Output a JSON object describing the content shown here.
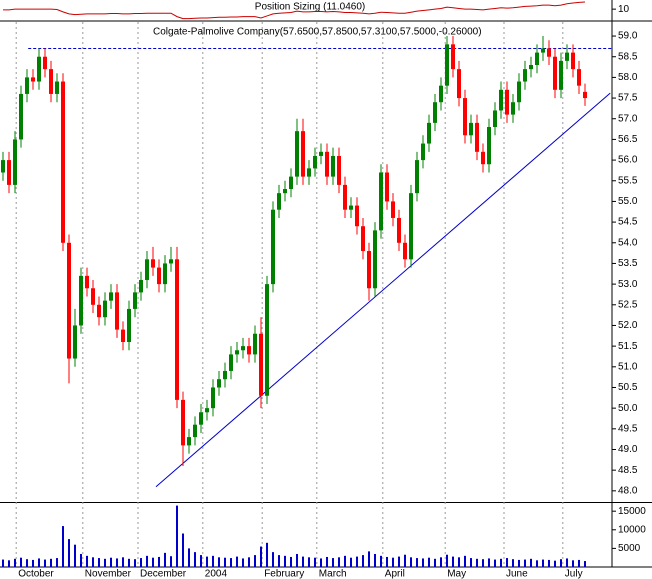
{
  "chart_data": [
    {
      "type": "line",
      "title": "Position Sizing (11.0460)",
      "color": "#cc0000",
      "values": [
        9.9,
        9.9,
        10.0,
        10.0,
        10.0,
        10.0,
        10.0,
        10.0,
        10.0,
        9.95,
        9.6,
        9.3,
        9.2,
        9.25,
        9.3,
        9.3,
        9.3,
        9.3,
        9.35,
        9.35,
        9.3,
        9.3,
        9.35,
        9.35,
        9.4,
        9.4,
        9.4,
        9.4,
        9.4,
        8.9,
        8.6,
        8.6,
        8.65,
        8.7,
        8.7,
        8.75,
        8.8,
        8.8,
        8.85,
        8.85,
        8.9,
        8.9,
        8.9,
        8.7,
        9.0,
        9.3,
        9.4,
        9.45,
        9.5,
        9.7,
        9.6,
        9.6,
        9.65,
        9.65,
        9.6,
        9.65,
        9.6,
        9.5,
        9.5,
        9.45,
        9.4,
        9.3,
        9.4,
        9.55,
        9.5,
        9.45,
        9.4,
        9.4,
        9.55,
        9.7,
        9.8,
        9.9,
        10.0,
        10.1,
        10.3,
        10.2,
        10.1,
        10.0,
        10.0,
        9.95,
        9.9,
        10.0,
        10.1,
        10.2,
        10.15,
        10.2,
        10.3,
        10.4,
        10.45,
        10.5,
        10.6,
        10.6,
        10.5,
        10.6,
        10.8,
        10.9,
        11.0,
        11.046
      ],
      "ylim": [
        8.4,
        11.2
      ],
      "yticks": [
        10
      ],
      "xlim": [
        -0.5,
        101.5
      ]
    },
    {
      "type": "candlestick",
      "title": "Colgate-Palmolive Company(57.6500,57.8500,57.3100,57.5000,-0.26000)",
      "open": [
        55.7,
        56.0,
        55.4,
        56.5,
        57.6,
        58.0,
        57.9,
        58.5,
        58.2,
        57.6,
        57.9,
        54.0,
        51.2,
        52.0,
        53.2,
        52.9,
        52.5,
        52.2,
        52.6,
        52.8,
        51.9,
        51.6,
        52.4,
        52.8,
        53.1,
        53.6,
        53.4,
        53.0,
        53.5,
        53.6,
        50.2,
        49.1,
        49.3,
        49.6,
        49.9,
        50.0,
        50.5,
        50.7,
        50.9,
        51.3,
        51.4,
        51.5,
        51.3,
        51.8,
        50.3,
        53.0,
        54.8,
        55.2,
        55.3,
        55.6,
        56.7,
        55.6,
        55.8,
        56.1,
        56.2,
        55.6,
        56.1,
        55.4,
        54.8,
        54.9,
        54.4,
        53.8,
        52.9,
        54.3,
        55.7,
        55.0,
        54.6,
        54.0,
        53.6,
        55.2,
        56.0,
        56.4,
        56.9,
        57.4,
        57.8,
        58.8,
        58.2,
        57.5,
        56.6,
        56.9,
        56.2,
        55.9,
        56.8,
        57.2,
        57.7,
        57.1,
        57.4,
        57.9,
        58.2,
        58.3,
        58.6,
        58.7,
        58.5,
        57.7,
        58.4,
        58.6,
        58.2,
        57.65
      ],
      "high": [
        56.2,
        56.2,
        56.7,
        57.8,
        58.2,
        58.2,
        58.7,
        58.7,
        58.4,
        58.1,
        58.1,
        54.2,
        52.4,
        53.4,
        53.4,
        53.1,
        52.7,
        52.8,
        53.0,
        53.0,
        52.1,
        52.6,
        53.0,
        53.3,
        53.8,
        53.9,
        53.6,
        53.7,
        53.9,
        53.9,
        50.4,
        49.5,
        49.8,
        50.1,
        50.2,
        50.7,
        50.9,
        51.1,
        51.5,
        51.6,
        51.7,
        51.7,
        52.0,
        52.2,
        53.2,
        55.0,
        55.4,
        55.5,
        55.8,
        57.0,
        57.0,
        56.0,
        56.3,
        56.4,
        56.4,
        56.3,
        56.3,
        55.6,
        55.1,
        55.1,
        54.6,
        54.0,
        54.5,
        55.9,
        55.9,
        55.2,
        54.8,
        54.2,
        55.4,
        56.2,
        56.6,
        57.1,
        57.6,
        58.0,
        59.0,
        59.0,
        58.4,
        57.7,
        57.1,
        57.1,
        56.4,
        57.0,
        57.4,
        57.9,
        57.9,
        57.6,
        58.1,
        58.4,
        58.5,
        58.8,
        59.0,
        58.9,
        58.7,
        58.6,
        58.8,
        58.8,
        58.4,
        57.85
      ],
      "low": [
        55.5,
        55.2,
        55.2,
        56.3,
        57.4,
        57.7,
        57.7,
        58.0,
        57.4,
        57.4,
        53.8,
        50.6,
        51.0,
        51.8,
        52.7,
        52.3,
        52.0,
        52.0,
        52.4,
        51.7,
        51.4,
        51.4,
        52.2,
        52.6,
        52.9,
        53.2,
        52.8,
        52.8,
        53.3,
        50.0,
        48.6,
        48.9,
        49.1,
        49.4,
        49.7,
        49.8,
        50.3,
        50.5,
        50.7,
        51.1,
        51.2,
        51.1,
        51.1,
        50.0,
        50.1,
        52.8,
        54.6,
        55.0,
        55.1,
        55.4,
        55.4,
        55.4,
        55.6,
        55.9,
        55.4,
        55.4,
        55.2,
        54.6,
        54.6,
        54.2,
        53.6,
        52.6,
        52.7,
        54.1,
        54.8,
        54.4,
        53.8,
        53.4,
        53.4,
        55.0,
        55.8,
        56.2,
        56.7,
        57.2,
        57.6,
        58.0,
        57.3,
        56.4,
        56.4,
        56.0,
        55.7,
        55.7,
        56.6,
        57.0,
        56.9,
        56.9,
        57.2,
        57.7,
        58.0,
        58.1,
        58.4,
        58.3,
        57.5,
        57.5,
        58.2,
        58.0,
        57.6,
        57.31
      ],
      "close": [
        56.0,
        55.4,
        56.5,
        57.6,
        58.0,
        57.9,
        58.5,
        58.2,
        57.6,
        57.9,
        54.0,
        51.2,
        52.0,
        53.2,
        52.9,
        52.5,
        52.2,
        52.6,
        52.8,
        51.9,
        51.6,
        52.4,
        52.8,
        53.1,
        53.6,
        53.4,
        53.0,
        53.5,
        53.6,
        50.2,
        49.1,
        49.3,
        49.6,
        49.9,
        50.0,
        50.5,
        50.7,
        50.9,
        51.3,
        51.4,
        51.5,
        51.3,
        51.8,
        50.3,
        53.0,
        54.8,
        55.2,
        55.3,
        55.6,
        56.7,
        55.6,
        55.8,
        56.1,
        56.2,
        55.6,
        56.1,
        55.4,
        54.8,
        54.9,
        54.4,
        53.8,
        52.9,
        54.3,
        55.7,
        55.0,
        54.6,
        54.0,
        53.6,
        55.2,
        56.0,
        56.4,
        56.9,
        57.4,
        57.8,
        58.8,
        58.2,
        57.5,
        56.6,
        56.9,
        56.2,
        55.9,
        56.8,
        57.2,
        57.7,
        57.1,
        57.4,
        57.9,
        58.2,
        58.3,
        58.6,
        58.7,
        58.5,
        57.7,
        58.4,
        58.6,
        58.2,
        57.8,
        57.5
      ],
      "up_color": "#008000",
      "down_color": "#ff0000",
      "ylim": [
        47.73,
        59.34
      ],
      "yticks": [
        {
          "value": 48,
          "label": "48.0"
        },
        48.5,
        {
          "value": 49,
          "label": "49.0"
        },
        49.5,
        {
          "value": 50,
          "label": "50.0"
        },
        50.5,
        {
          "value": 51,
          "label": "51.0"
        },
        51.5,
        {
          "value": 52,
          "label": "52.0"
        },
        52.5,
        {
          "value": 53,
          "label": "53.0"
        },
        53.5,
        {
          "value": 54,
          "label": "54.0"
        },
        54.5,
        {
          "value": 55,
          "label": "55.0"
        },
        55.5,
        {
          "value": 56,
          "label": "56.0"
        },
        56.5,
        {
          "value": 57,
          "label": "57.0"
        },
        57.5,
        {
          "value": 58,
          "label": "58.0"
        },
        58.5,
        {
          "value": 59,
          "label": "59.0"
        }
      ],
      "xlim": [
        -0.5,
        101.5
      ],
      "xticks": [
        {
          "value": 2.2,
          "label": "October"
        },
        {
          "value": 13.3,
          "label": "November"
        },
        {
          "value": 22.5,
          "label": "December"
        },
        {
          "value": 33.3,
          "label": "2004"
        },
        {
          "value": 43.2,
          "label": "February"
        },
        {
          "value": 52.3,
          "label": "March"
        },
        {
          "value": 63.3,
          "label": "April"
        },
        {
          "value": 73.7,
          "label": "May"
        },
        {
          "value": 83.5,
          "label": "June"
        },
        {
          "value": 93.3,
          "label": "July"
        }
      ],
      "grid": true,
      "hlines": [
        {
          "y": 58.7,
          "x": [
            4.2,
            101.5
          ],
          "color": "#0000cc",
          "dashed": true
        }
      ],
      "trendlines": [
        {
          "x": [
            25.5,
            101.2
          ],
          "y": [
            48.1,
            57.62
          ],
          "color": "#0000cc"
        }
      ]
    },
    {
      "type": "bar",
      "color": "#0000cc",
      "values": [
        2000,
        1800,
        2200,
        2500,
        2100,
        1900,
        2300,
        2000,
        2200,
        2400,
        11000,
        7500,
        6000,
        3500,
        3000,
        2600,
        2400,
        2200,
        2500,
        2300,
        2600,
        2200,
        2100,
        2400,
        3000,
        2500,
        2700,
        3800,
        2900,
        16500,
        9000,
        5000,
        4000,
        3200,
        2800,
        3000,
        2600,
        2500,
        2400,
        2800,
        2300,
        2600,
        3200,
        5500,
        6500,
        4000,
        3200,
        3000,
        2700,
        3500,
        2800,
        2600,
        2500,
        2300,
        2700,
        2400,
        2600,
        3000,
        2500,
        2800,
        3200,
        4200,
        3500,
        3000,
        2700,
        2500,
        2800,
        3300,
        2600,
        2400,
        2300,
        2500,
        2200,
        2600,
        3300,
        2800,
        2600,
        3000,
        2400,
        2200,
        2100,
        2300,
        2000,
        2200,
        2400,
        2100,
        1900,
        2000,
        2200,
        1800,
        2000,
        1900,
        1700,
        2100,
        2300,
        1800,
        1900,
        1600
      ],
      "ylim": [
        0,
        17200
      ],
      "yticks": [
        5000,
        10000,
        15000
      ],
      "xlim": [
        -0.5,
        101.5
      ]
    }
  ]
}
